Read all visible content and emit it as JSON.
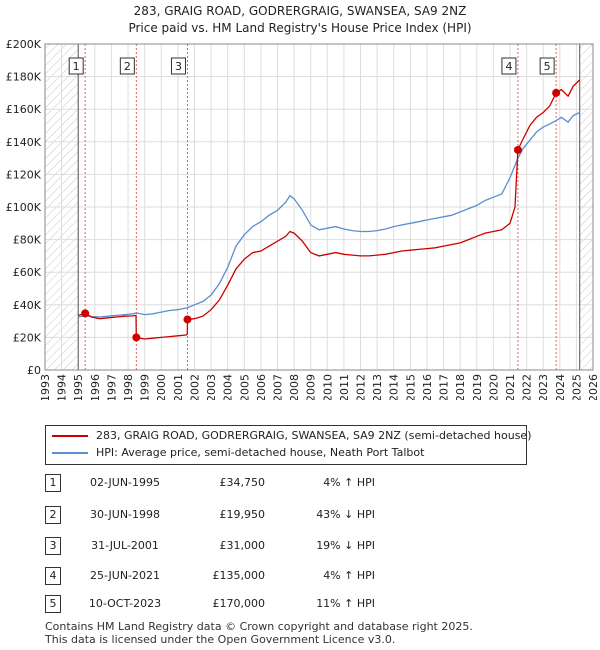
{
  "chart_data": {
    "type": "line",
    "title": "283, GRAIG ROAD, GODRERGRAIG, SWANSEA, SA9 2NZ",
    "subtitle": "Price paid vs. HM Land Registry's House Price Index (HPI)",
    "xlim": [
      1993,
      2026
    ],
    "ylim": [
      0,
      200000
    ],
    "x_ticks": [
      "1993",
      "1994",
      "1995",
      "1996",
      "1997",
      "1998",
      "1999",
      "2000",
      "2001",
      "2002",
      "2003",
      "2004",
      "2005",
      "2006",
      "2007",
      "2008",
      "2009",
      "2010",
      "2011",
      "2012",
      "2013",
      "2014",
      "2015",
      "2016",
      "2017",
      "2018",
      "2019",
      "2020",
      "2021",
      "2022",
      "2023",
      "2024",
      "2025",
      "2026"
    ],
    "y_ticks": [
      {
        "value": 0,
        "label": "£0"
      },
      {
        "value": 20000,
        "label": "£20K"
      },
      {
        "value": 40000,
        "label": "£40K"
      },
      {
        "value": 60000,
        "label": "£60K"
      },
      {
        "value": 80000,
        "label": "£80K"
      },
      {
        "value": 100000,
        "label": "£100K"
      },
      {
        "value": 120000,
        "label": "£120K"
      },
      {
        "value": 140000,
        "label": "£140K"
      },
      {
        "value": 160000,
        "label": "£160K"
      },
      {
        "value": 180000,
        "label": "£180K"
      },
      {
        "value": 200000,
        "label": "£200K"
      }
    ],
    "data_range": [
      1995.0,
      2025.2
    ],
    "series": [
      {
        "name": "283, GRAIG ROAD, GODRERGRAIG, SWANSEA, SA9 2NZ (semi-detached house)",
        "color": "#cc0000",
        "points": [
          [
            1995.0,
            33500
          ],
          [
            1995.42,
            34750
          ],
          [
            1995.8,
            32500
          ],
          [
            1996.3,
            31500
          ],
          [
            1996.8,
            32000
          ],
          [
            1997.3,
            32500
          ],
          [
            1997.8,
            33000
          ],
          [
            1998.3,
            33200
          ],
          [
            1998.48,
            33500
          ],
          [
            1998.5,
            19950
          ],
          [
            1999.0,
            19000
          ],
          [
            1999.5,
            19500
          ],
          [
            2000.0,
            20000
          ],
          [
            2000.5,
            20500
          ],
          [
            2001.0,
            21000
          ],
          [
            2001.5,
            21500
          ],
          [
            2001.57,
            22000
          ],
          [
            2001.58,
            31000
          ],
          [
            2002.0,
            31500
          ],
          [
            2002.5,
            33000
          ],
          [
            2003.0,
            37000
          ],
          [
            2003.5,
            43000
          ],
          [
            2004.0,
            52000
          ],
          [
            2004.5,
            62000
          ],
          [
            2005.0,
            68000
          ],
          [
            2005.5,
            72000
          ],
          [
            2006.0,
            73000
          ],
          [
            2006.5,
            76000
          ],
          [
            2007.0,
            79000
          ],
          [
            2007.5,
            82000
          ],
          [
            2007.75,
            85000
          ],
          [
            2008.0,
            84000
          ],
          [
            2008.5,
            79000
          ],
          [
            2009.0,
            72000
          ],
          [
            2009.5,
            70000
          ],
          [
            2010.0,
            71000
          ],
          [
            2010.5,
            72000
          ],
          [
            2011.0,
            71000
          ],
          [
            2011.5,
            70500
          ],
          [
            2012.0,
            70000
          ],
          [
            2012.5,
            70000
          ],
          [
            2013.0,
            70500
          ],
          [
            2013.5,
            71000
          ],
          [
            2014.0,
            72000
          ],
          [
            2014.5,
            73000
          ],
          [
            2015.0,
            73500
          ],
          [
            2015.5,
            74000
          ],
          [
            2016.0,
            74500
          ],
          [
            2016.5,
            75000
          ],
          [
            2017.0,
            76000
          ],
          [
            2017.5,
            77000
          ],
          [
            2018.0,
            78000
          ],
          [
            2018.5,
            80000
          ],
          [
            2019.0,
            82000
          ],
          [
            2019.5,
            84000
          ],
          [
            2020.0,
            85000
          ],
          [
            2020.5,
            86000
          ],
          [
            2021.0,
            90000
          ],
          [
            2021.3,
            100000
          ],
          [
            2021.48,
            135000
          ],
          [
            2021.8,
            142000
          ],
          [
            2022.2,
            150000
          ],
          [
            2022.6,
            155000
          ],
          [
            2023.0,
            158000
          ],
          [
            2023.4,
            162000
          ],
          [
            2023.78,
            170000
          ],
          [
            2024.1,
            172000
          ],
          [
            2024.5,
            168000
          ],
          [
            2024.8,
            174000
          ],
          [
            2025.2,
            178000
          ]
        ]
      },
      {
        "name": "HPI: Average price, semi-detached house, Neath Port Talbot",
        "color": "#5b8fcf",
        "points": [
          [
            1995.0,
            32500
          ],
          [
            1995.42,
            33300
          ],
          [
            1995.8,
            32800
          ],
          [
            1996.3,
            32500
          ],
          [
            1996.8,
            33000
          ],
          [
            1997.3,
            33500
          ],
          [
            1997.8,
            34000
          ],
          [
            1998.3,
            34500
          ],
          [
            1998.5,
            35000
          ],
          [
            1999.0,
            34000
          ],
          [
            1999.5,
            34500
          ],
          [
            2000.0,
            35500
          ],
          [
            2000.5,
            36500
          ],
          [
            2001.0,
            37000
          ],
          [
            2001.57,
            38200
          ],
          [
            2002.0,
            40000
          ],
          [
            2002.5,
            42000
          ],
          [
            2003.0,
            46000
          ],
          [
            2003.5,
            53000
          ],
          [
            2004.0,
            63000
          ],
          [
            2004.5,
            76000
          ],
          [
            2005.0,
            83000
          ],
          [
            2005.5,
            88000
          ],
          [
            2006.0,
            91000
          ],
          [
            2006.5,
            95000
          ],
          [
            2007.0,
            98000
          ],
          [
            2007.5,
            103000
          ],
          [
            2007.75,
            107000
          ],
          [
            2008.0,
            105000
          ],
          [
            2008.5,
            98000
          ],
          [
            2009.0,
            89000
          ],
          [
            2009.5,
            86000
          ],
          [
            2010.0,
            87000
          ],
          [
            2010.5,
            88000
          ],
          [
            2011.0,
            86500
          ],
          [
            2011.5,
            85500
          ],
          [
            2012.0,
            85000
          ],
          [
            2012.5,
            85000
          ],
          [
            2013.0,
            85500
          ],
          [
            2013.5,
            86500
          ],
          [
            2014.0,
            88000
          ],
          [
            2014.5,
            89000
          ],
          [
            2015.0,
            90000
          ],
          [
            2015.5,
            91000
          ],
          [
            2016.0,
            92000
          ],
          [
            2016.5,
            93000
          ],
          [
            2017.0,
            94000
          ],
          [
            2017.5,
            95000
          ],
          [
            2018.0,
            97000
          ],
          [
            2018.5,
            99000
          ],
          [
            2019.0,
            101000
          ],
          [
            2019.5,
            104000
          ],
          [
            2020.0,
            106000
          ],
          [
            2020.5,
            108000
          ],
          [
            2021.0,
            118000
          ],
          [
            2021.48,
            130000
          ],
          [
            2021.8,
            136000
          ],
          [
            2022.2,
            141000
          ],
          [
            2022.6,
            146000
          ],
          [
            2023.0,
            149000
          ],
          [
            2023.4,
            151000
          ],
          [
            2023.78,
            153000
          ],
          [
            2024.1,
            155000
          ],
          [
            2024.5,
            152000
          ],
          [
            2024.8,
            156000
          ],
          [
            2025.2,
            158000
          ]
        ]
      }
    ],
    "sales": [
      {
        "num": "1",
        "x": 1995.42,
        "price_value": 34750,
        "date": "02-JUN-1995",
        "price": "£34,750",
        "hpi": "4% ↑ HPI"
      },
      {
        "num": "2",
        "x": 1998.5,
        "price_value": 19950,
        "date": "30-JUN-1998",
        "price": "£19,950",
        "hpi": "43% ↓ HPI"
      },
      {
        "num": "3",
        "x": 2001.58,
        "price_value": 31000,
        "date": "31-JUL-2001",
        "price": "£31,000",
        "hpi": "19% ↓ HPI"
      },
      {
        "num": "4",
        "x": 2021.48,
        "price_value": 135000,
        "date": "25-JUN-2021",
        "price": "£135,000",
        "hpi": "4% ↑ HPI"
      },
      {
        "num": "5",
        "x": 2023.78,
        "price_value": 170000,
        "date": "10-OCT-2023",
        "price": "£170,000",
        "hpi": "11% ↑ HPI"
      }
    ]
  },
  "legend": {
    "property_label": "283, GRAIG ROAD, GODRERGRAIG, SWANSEA, SA9 2NZ (semi-detached house)",
    "hpi_label": "HPI: Average price, semi-detached house, Neath Port Talbot"
  },
  "footer": {
    "line1": "Contains HM Land Registry data © Crown copyright and database right 2025.",
    "line2": "This data is licensed under the Open Government Licence v3.0."
  }
}
